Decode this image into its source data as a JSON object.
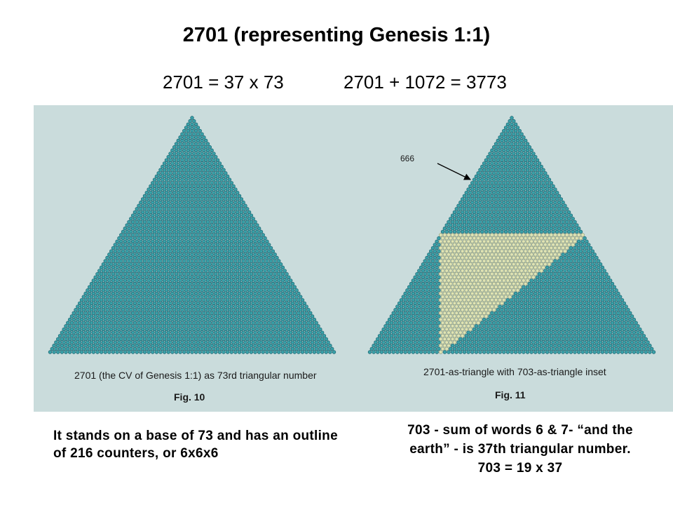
{
  "title": "2701 (representing Genesis 1:1)",
  "equation_left": "2701 = 37 x 73",
  "equation_right": "2701 + 1072 = 3773",
  "figures": {
    "left": {
      "caption": "2701 (the CV of Genesis 1:1) as 73rd triangular number",
      "label": "Fig. 10",
      "rows": 73
    },
    "right": {
      "caption": "2701-as-triangle with 703-as-triangle inset",
      "label": "Fig. 11",
      "rows": 73,
      "inset_rows": 37,
      "annotation": "666"
    }
  },
  "colors": {
    "panel_background": "#cadcdc",
    "counter_fill": "#3aa0a8",
    "counter_stroke": "#17606c",
    "inset_fill": "#dfe3b4",
    "inset_stroke": "#8d9b7a"
  },
  "note_left": "It stands on a base of 73 and has an outline of 216 counters, or 6x6x6",
  "note_right": {
    "line1": "703 - sum of words 6 & 7- “and the",
    "line2": "earth” - is 37th triangular number.",
    "line3": "703 = 19 x 37"
  }
}
